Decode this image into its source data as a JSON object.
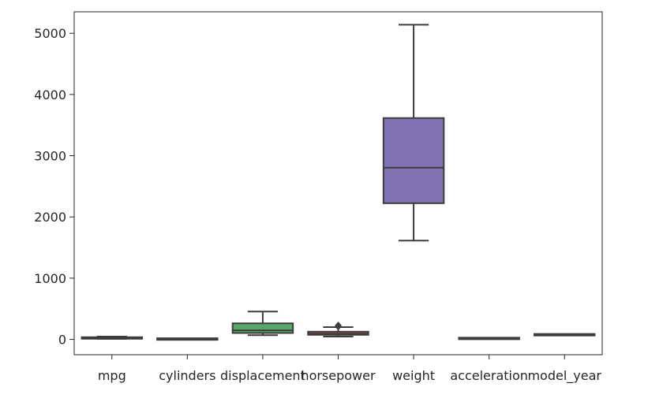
{
  "chart_data": {
    "type": "box",
    "title": "",
    "xlabel": "",
    "ylabel": "",
    "ylim": [
      -250,
      5350
    ],
    "yticks": [
      0,
      1000,
      2000,
      3000,
      4000,
      5000
    ],
    "grid": false,
    "categories": [
      "mpg",
      "cylinders",
      "displacement",
      "horsepower",
      "weight",
      "acceleration",
      "model_year"
    ],
    "boxes": [
      {
        "category": "mpg",
        "min": 9,
        "q1": 17.5,
        "median": 23,
        "q3": 29,
        "max": 46.6,
        "outliers": [],
        "color": "#4c72b0"
      },
      {
        "category": "cylinders",
        "min": 3,
        "q1": 4,
        "median": 4,
        "q3": 8,
        "max": 8,
        "outliers": [],
        "color": "#dd8452"
      },
      {
        "category": "displacement",
        "min": 68,
        "q1": 104,
        "median": 148,
        "q3": 262,
        "max": 455,
        "outliers": [],
        "color": "#55a868"
      },
      {
        "category": "horsepower",
        "min": 46,
        "q1": 75,
        "median": 93,
        "q3": 126,
        "max": 200,
        "outliers": [
          208,
          215,
          220,
          225,
          230
        ],
        "color": "#c44e52"
      },
      {
        "category": "weight",
        "min": 1613,
        "q1": 2224,
        "median": 2804,
        "q3": 3615,
        "max": 5140,
        "outliers": [],
        "color": "#8172b3"
      },
      {
        "category": "acceleration",
        "min": 8,
        "q1": 13.8,
        "median": 15.5,
        "q3": 17.2,
        "max": 22.2,
        "outliers": [],
        "color": "#937860"
      },
      {
        "category": "model_year",
        "min": 70,
        "q1": 73,
        "median": 76,
        "q3": 79,
        "max": 82,
        "outliers": [],
        "color": "#da8bc3"
      }
    ]
  }
}
